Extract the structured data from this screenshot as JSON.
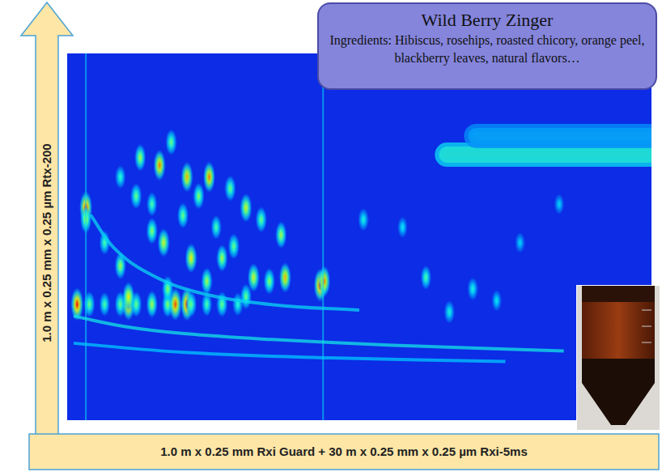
{
  "chart_data": {
    "type": "contour",
    "title": "Wild Berry Zinger",
    "subtitle": "Ingredients: Hibiscus, rosehips, roasted chicory, orange peel, blackberry leaves, natural flavors…",
    "x_label": "1.0 m x 0.25 mm Rxi Guard + 30 m x 0.25 mm x 0.25 µm Rxi-5ms",
    "y_label": "1.0 m x 0.25 mm x 0.25 µm Rtx-200",
    "xlim": [
      0,
      100
    ],
    "ylim": [
      0,
      100
    ],
    "tick_labels": false,
    "grid": false,
    "intensity_range": [
      0,
      100
    ],
    "spots": {
      "x": [
        1.7,
        3.8,
        6.4,
        9.1,
        10.5,
        11.8,
        14.5,
        17.2,
        18.5,
        20.5,
        21.2,
        23.9,
        26.5,
        29.2,
        3.2,
        3.2,
        12.5,
        15.8,
        17.8,
        20.5,
        24.3,
        22.5,
        27.9,
        30.6,
        33.2,
        36.6,
        37.3,
        34.6,
        43.3,
        44.0,
        50.7,
        57.4,
        61.4,
        65.4,
        69.4,
        73.5,
        77.5,
        84.2,
        9.1,
        14.5,
        19.8,
        26.5,
        30.6,
        31.9,
        10.5,
        17.2,
        23.9,
        6.4,
        9.1,
        11.8,
        14.5,
        16.5,
        21.2,
        25.5,
        28.5
      ],
      "y": [
        31.6,
        31.6,
        31.6,
        31.6,
        31.6,
        31.6,
        31.6,
        31.6,
        31.6,
        31.6,
        31.6,
        31.6,
        31.6,
        31.6,
        57.9,
        54.7,
        71.6,
        69.5,
        75.8,
        66.3,
        66.3,
        61.1,
        63.2,
        57.9,
        54.7,
        50.5,
        38.9,
        37.9,
        36.8,
        37.9,
        54.7,
        52.6,
        38.9,
        29.5,
        35.8,
        32.6,
        48.4,
        58.9,
        42.1,
        51.6,
        55.8,
        44.2,
        33.7,
        38.9,
        33.7,
        35.8,
        37.9,
        48.4,
        66.3,
        61.1,
        58.9,
        48.4,
        44.2,
        52.6,
        47.4
      ],
      "intensity": [
        100,
        60,
        55,
        60,
        95,
        60,
        70,
        65,
        95,
        100,
        60,
        55,
        60,
        50,
        100,
        70,
        70,
        90,
        60,
        85,
        90,
        65,
        60,
        75,
        60,
        70,
        85,
        65,
        100,
        90,
        45,
        40,
        55,
        45,
        45,
        40,
        35,
        35,
        70,
        65,
        60,
        70,
        60,
        75,
        80,
        65,
        70,
        55,
        50,
        60,
        55,
        75,
        80,
        55,
        60
      ]
    },
    "broad_peaks": [
      {
        "x_start": 70,
        "x_end": 100,
        "y": 77.5,
        "intensity": 55
      },
      {
        "x_start": 65,
        "x_end": 100,
        "y": 72.4,
        "intensity": 100
      }
    ],
    "bands": [
      {
        "x": [
          1.1,
          10,
          20,
          35,
          55,
          85
        ],
        "y": [
          28.4,
          25.5,
          23.6,
          22,
          20.5,
          18.9
        ],
        "intensity": 40
      },
      {
        "x": [
          1.1,
          20,
          45,
          75
        ],
        "y": [
          21,
          18.5,
          17,
          16
        ],
        "intensity": 30
      },
      {
        "x": [
          4,
          8,
          14,
          22,
          35,
          50
        ],
        "y": [
          56,
          47,
          40,
          35,
          31.5,
          30
        ],
        "intensity": 35
      }
    ],
    "streaks_x": [
      3.2,
      43.8
    ]
  }
}
